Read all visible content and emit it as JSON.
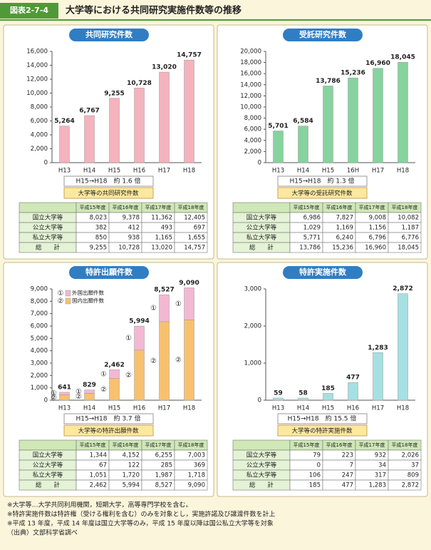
{
  "header": {
    "label": "図表2-7-4",
    "title": "大学等における共同研究実施件数等の推移"
  },
  "chart_data": [
    {
      "type": "bar",
      "title": "共同研究件数",
      "categories": [
        "H13",
        "H14",
        "H15",
        "H16",
        "H17",
        "H18"
      ],
      "values": [
        5264,
        6767,
        9255,
        10728,
        13020,
        14757
      ],
      "value_labels": [
        "5,264",
        "6,767",
        "9,255",
        "10,728",
        "13,020",
        "14,757"
      ],
      "color": "#f4b3bd",
      "ylim": [
        0,
        16000
      ],
      "yticks": [
        0,
        {
          "value": 2000,
          "label": "2,000"
        },
        {
          "value": 4000,
          "label": "4,000"
        },
        {
          "value": 6000,
          "label": "6,000"
        },
        {
          "value": 8000,
          "label": "8,000"
        },
        {
          "value": 10000,
          "label": "10,000"
        },
        {
          "value": 12000,
          "label": "12,000"
        },
        {
          "value": 14000,
          "label": "14,000"
        },
        {
          "value": 16000,
          "label": "16,000"
        }
      ],
      "ratio": "H15→H18　約 1.6 倍",
      "caption": "大学等の共同研究件数",
      "table": {
        "columns": [
          "平成15年度",
          "平成16年度",
          "平成17年度",
          "平成18年度"
        ],
        "rows": [
          [
            "国立大学等",
            "8,023",
            "9,378",
            "11,362",
            "12,405"
          ],
          [
            "公立大学等",
            "382",
            "412",
            "493",
            "697"
          ],
          [
            "私立大学等",
            "850",
            "938",
            "1,165",
            "1,655"
          ],
          [
            "総　　計",
            "9,255",
            "10,728",
            "13,020",
            "14,757"
          ]
        ]
      }
    },
    {
      "type": "bar",
      "title": "受託研究件数",
      "categories": [
        "H13",
        "H14",
        "H15",
        "16H",
        "H17",
        "H18"
      ],
      "values": [
        5701,
        6584,
        13786,
        15236,
        16960,
        18045
      ],
      "value_labels": [
        "5,701",
        "6,584",
        "13,786",
        "15,236",
        "16,960",
        "18,045"
      ],
      "color": "#86d39f",
      "ylim": [
        0,
        20000
      ],
      "yticks": [
        0,
        {
          "value": 2000,
          "label": "2,000"
        },
        {
          "value": 4000,
          "label": "4,000"
        },
        {
          "value": 6000,
          "label": "6,000"
        },
        {
          "value": 8000,
          "label": "8,000"
        },
        {
          "value": 10000,
          "label": "10,000"
        },
        {
          "value": 12000,
          "label": "12,000"
        },
        {
          "value": 14000,
          "label": "14,000"
        },
        {
          "value": 16000,
          "label": "16,000"
        },
        {
          "value": 18000,
          "label": "18,000"
        },
        {
          "value": 20000,
          "label": "20,000"
        }
      ],
      "ratio": "H15→H18　約 1.3 倍",
      "caption": "大学等の受託研究件数",
      "table": {
        "columns": [
          "平成15年度",
          "平成16年度",
          "平成17年度",
          "平成18年度"
        ],
        "rows": [
          [
            "国立大学等",
            "6,986",
            "7,827",
            "9,008",
            "10,082"
          ],
          [
            "公立大学等",
            "1,029",
            "1,169",
            "1,156",
            "1,187"
          ],
          [
            "私立大学等",
            "5,771",
            "6,240",
            "6,796",
            "6,776"
          ],
          [
            "総　　計",
            "13,786",
            "15,236",
            "16,960",
            "18,045"
          ]
        ]
      }
    },
    {
      "type": "stacked_bar",
      "title": "特許出願件数",
      "categories": [
        "H13",
        "H14",
        "H15",
        "H16",
        "H17",
        "H18"
      ],
      "series": [
        {
          "name": "国内出願件数",
          "marker": "②",
          "color": "#f8c170",
          "values": [
            430,
            550,
            1750,
            4050,
            6350,
            6500
          ]
        },
        {
          "name": "外国出願件数",
          "marker": "①",
          "color": "#f3b8d2",
          "values": [
            211,
            279,
            712,
            1944,
            2177,
            2590
          ]
        }
      ],
      "total_labels": [
        "641",
        "829",
        "2,462",
        "5,994",
        "8,527",
        "9,090"
      ],
      "ylim": [
        0,
        9000
      ],
      "yticks": [
        0,
        {
          "value": 1000,
          "label": "1,000"
        },
        {
          "value": 2000,
          "label": "2,000"
        },
        {
          "value": 3000,
          "label": "3,000"
        },
        {
          "value": 4000,
          "label": "4,000"
        },
        {
          "value": 5000,
          "label": "5,000"
        },
        {
          "value": 6000,
          "label": "6,000"
        },
        {
          "value": 7000,
          "label": "7,000"
        },
        {
          "value": 8000,
          "label": "8,000"
        },
        {
          "value": 9000,
          "label": "9,000"
        }
      ],
      "ratio": "H15→H18　約 3.7 倍",
      "caption": "大学等の特許出願件数",
      "table": {
        "columns": [
          "平成15年度",
          "平成16年度",
          "平成17年度",
          "平成18年度"
        ],
        "rows": [
          [
            "国立大学等",
            "1,344",
            "4,152",
            "6,255",
            "7,003"
          ],
          [
            "公立大学等",
            "67",
            "122",
            "285",
            "369"
          ],
          [
            "私立大学等",
            "1,051",
            "1,720",
            "1,987",
            "1,718"
          ],
          [
            "総　　計",
            "2,462",
            "5,994",
            "8,527",
            "9,090"
          ]
        ]
      }
    },
    {
      "type": "bar",
      "title": "特許実施件数",
      "categories": [
        "H13",
        "H14",
        "H15",
        "H16",
        "H17",
        "H18"
      ],
      "values": [
        59,
        58,
        185,
        477,
        1283,
        2872
      ],
      "value_labels": [
        "59",
        "58",
        "185",
        "477",
        "1,283",
        "2,872"
      ],
      "color": "#a6e0e2",
      "ylim": [
        0,
        3000
      ],
      "yticks": [
        0,
        {
          "value": 1000,
          "label": "1,000"
        },
        {
          "value": 2000,
          "label": "2,000"
        },
        {
          "value": 3000,
          "label": "3,000"
        }
      ],
      "ratio": "H15→H18　約 15.5 倍",
      "caption": "大学等の特許実施件数",
      "table": {
        "columns": [
          "平成15年度",
          "平成16年度",
          "平成17年度",
          "平成18年度"
        ],
        "rows": [
          [
            "国立大学等",
            "79",
            "223",
            "932",
            "2,026"
          ],
          [
            "公立大学等",
            "0",
            "7",
            "34",
            "37"
          ],
          [
            "私立大学等",
            "106",
            "247",
            "317",
            "809"
          ],
          [
            "総　　計",
            "185",
            "477",
            "1,283",
            "2,872"
          ]
        ]
      }
    }
  ],
  "notes": [
    "※大学等…大学共同利用機関，短期大学，高等専門学校を含む。",
    "※特許実施件数は特許権（受ける権利を含む）のみを対象とし，実施許諾及び譲渡件数を計上",
    "※平成 13 年度，平成 14 年度は国立大学等のみ，平成 15 年度以降は国公私立大学等を対象",
    "（出典）文部科学省調べ"
  ]
}
